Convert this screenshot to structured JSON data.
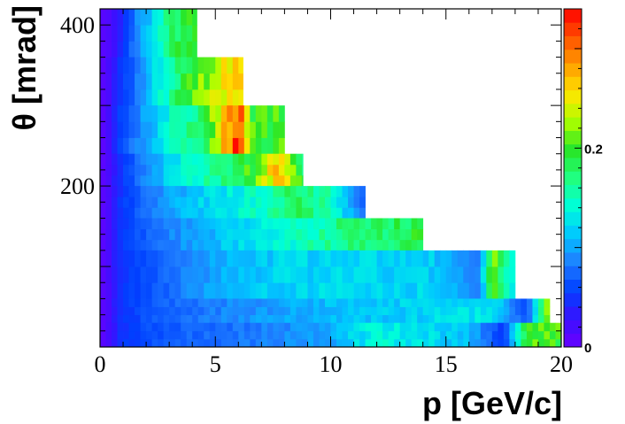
{
  "chart_data": {
    "type": "heatmap",
    "title": "",
    "xlabel": "p [GeV/c]",
    "ylabel": "θ [mrad]",
    "xlim": [
      0,
      20
    ],
    "ylim": [
      0,
      420
    ],
    "x_ticks": [
      0,
      5,
      10,
      15,
      20
    ],
    "x_tick_labels": [
      "0",
      "5",
      "10",
      "15",
      "20"
    ],
    "y_ticks": [
      200,
      400
    ],
    "y_tick_labels": [
      "200",
      "400"
    ],
    "zlim": [
      0,
      0.34
    ],
    "colorbar_ticks": [
      0,
      0.2
    ],
    "colorbar_tick_labels": [
      "0",
      "0.2"
    ],
    "colormap": "rainbow",
    "colormap_colors": [
      "#6a00ff",
      "#3a10ff",
      "#0040ff",
      "#1f7fff",
      "#00c8ff",
      "#00ffd8",
      "#20ff80",
      "#28e628",
      "#aaff00",
      "#ffe600",
      "#ff9e00",
      "#ff5000",
      "#ff0000"
    ],
    "y_bins": [
      {
        "y0": 360,
        "y1": 420,
        "x_max": 4.2,
        "anchors": [
          [
            0.2,
            0.01
          ],
          [
            0.9,
            0.04
          ],
          [
            1.5,
            0.08
          ],
          [
            2.4,
            0.13
          ],
          [
            3.2,
            0.18
          ],
          [
            4.2,
            0.2
          ]
        ]
      },
      {
        "y0": 300,
        "y1": 360,
        "x_max": 6.2,
        "anchors": [
          [
            0.2,
            0.01
          ],
          [
            0.9,
            0.05
          ],
          [
            2.0,
            0.1
          ],
          [
            3.0,
            0.16
          ],
          [
            4.5,
            0.22
          ],
          [
            5.5,
            0.25
          ],
          [
            6.2,
            0.25
          ]
        ]
      },
      {
        "y0": 240,
        "y1": 300,
        "x_max": 8.0,
        "anchors": [
          [
            0.2,
            0.01
          ],
          [
            0.9,
            0.06
          ],
          [
            2.0,
            0.1
          ],
          [
            3.0,
            0.14
          ],
          [
            4.5,
            0.18
          ],
          [
            6.0,
            0.32
          ],
          [
            6.6,
            0.2
          ],
          [
            8.0,
            0.2
          ]
        ]
      },
      {
        "y0": 200,
        "y1": 240,
        "x_max": 8.8,
        "anchors": [
          [
            0.2,
            0.01
          ],
          [
            0.9,
            0.05
          ],
          [
            2.0,
            0.09
          ],
          [
            3.2,
            0.13
          ],
          [
            5.0,
            0.16
          ],
          [
            6.5,
            0.2
          ],
          [
            7.8,
            0.27
          ],
          [
            8.8,
            0.18
          ]
        ]
      },
      {
        "y0": 160,
        "y1": 200,
        "x_max": 11.5,
        "anchors": [
          [
            0.2,
            0.01
          ],
          [
            0.9,
            0.05
          ],
          [
            2.5,
            0.09
          ],
          [
            4.5,
            0.12
          ],
          [
            6.5,
            0.14
          ],
          [
            8.5,
            0.18
          ],
          [
            10.0,
            0.15
          ],
          [
            11.5,
            0.07
          ]
        ]
      },
      {
        "y0": 120,
        "y1": 160,
        "x_max": 14.0,
        "anchors": [
          [
            0.2,
            0.01
          ],
          [
            0.9,
            0.05
          ],
          [
            2.5,
            0.08
          ],
          [
            5.0,
            0.11
          ],
          [
            8.0,
            0.14
          ],
          [
            10.5,
            0.17
          ],
          [
            12.5,
            0.18
          ],
          [
            14.0,
            0.19
          ]
        ]
      },
      {
        "y0": 60,
        "y1": 120,
        "x_max": 18.0,
        "anchors": [
          [
            0.2,
            0.01
          ],
          [
            0.9,
            0.05
          ],
          [
            2.5,
            0.07
          ],
          [
            5.0,
            0.1
          ],
          [
            8.0,
            0.12
          ],
          [
            11.0,
            0.12
          ],
          [
            14.0,
            0.12
          ],
          [
            16.5,
            0.09
          ],
          [
            17.0,
            0.22
          ],
          [
            18.0,
            0.12
          ]
        ]
      },
      {
        "y0": 30,
        "y1": 60,
        "x_max": 19.5,
        "anchors": [
          [
            0.2,
            0.01
          ],
          [
            0.9,
            0.05
          ],
          [
            2.5,
            0.07
          ],
          [
            6.0,
            0.09
          ],
          [
            10.0,
            0.11
          ],
          [
            14.0,
            0.12
          ],
          [
            17.0,
            0.13
          ],
          [
            18.5,
            0.06
          ],
          [
            19.5,
            0.23
          ]
        ]
      },
      {
        "y0": 0,
        "y1": 30,
        "x_max": 20.0,
        "anchors": [
          [
            0.2,
            0.01
          ],
          [
            0.9,
            0.05
          ],
          [
            3.0,
            0.07
          ],
          [
            6.0,
            0.08
          ],
          [
            10.0,
            0.1
          ],
          [
            12.0,
            0.14
          ],
          [
            16.0,
            0.11
          ],
          [
            17.5,
            0.05
          ],
          [
            18.5,
            0.2
          ],
          [
            20.0,
            0.2
          ]
        ]
      }
    ]
  }
}
